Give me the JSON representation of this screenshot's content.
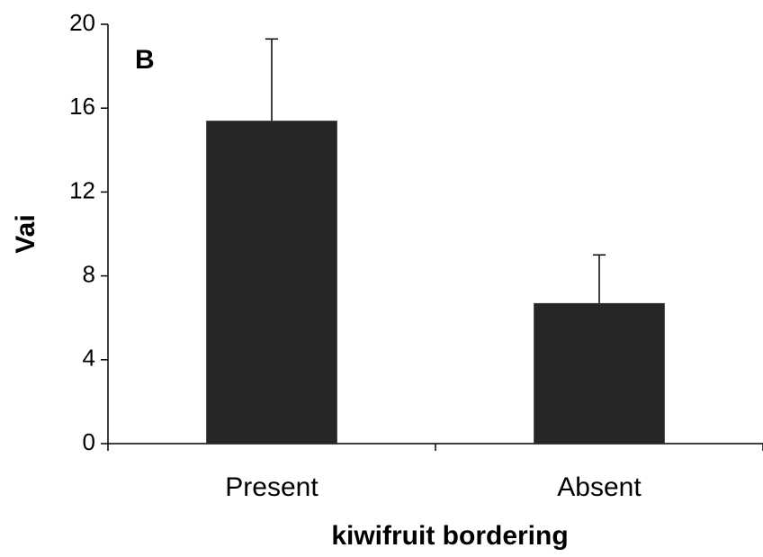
{
  "chart_data": {
    "type": "bar",
    "annotation": "B",
    "xlabel": "kiwifruit bordering",
    "ylabel": "Vai",
    "categories": [
      "Present",
      "Absent"
    ],
    "values": [
      15.4,
      6.7
    ],
    "errors": [
      3.9,
      2.3
    ],
    "color": "#262626",
    "ylim": [
      0,
      20
    ],
    "yticks": [
      0,
      4,
      8,
      12,
      16,
      20
    ],
    "grid": false
  }
}
